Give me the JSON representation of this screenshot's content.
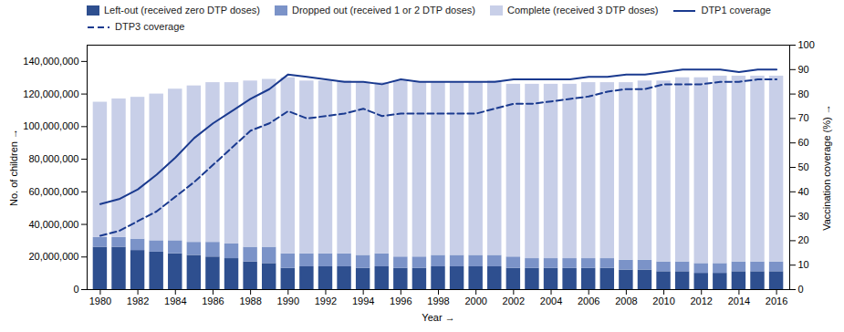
{
  "chart_data": {
    "type": "bar",
    "stacked": true,
    "grid": false,
    "legend": "upper left",
    "xlabel": "Year",
    "ylabel": "No. of children",
    "y2label": "Vaccination coverage (%)",
    "x": [
      1980,
      1981,
      1982,
      1983,
      1984,
      1985,
      1986,
      1987,
      1988,
      1989,
      1990,
      1991,
      1992,
      1993,
      1994,
      1995,
      1996,
      1997,
      1998,
      1999,
      2000,
      2001,
      2002,
      2003,
      2004,
      2005,
      2006,
      2007,
      2008,
      2009,
      2010,
      2011,
      2012,
      2013,
      2014,
      2015,
      2016
    ],
    "xlim": [
      1979.3,
      2016.7
    ],
    "xticks": [
      1980,
      1982,
      1984,
      1986,
      1988,
      1990,
      1992,
      1994,
      1996,
      1998,
      2000,
      2002,
      2004,
      2006,
      2008,
      2010,
      2012,
      2014,
      2016
    ],
    "ylim": [
      0,
      150000000
    ],
    "yticks": [
      0,
      {
        "value": 20000000,
        "label": "20,000,000"
      },
      {
        "value": 40000000,
        "label": "40,000,000"
      },
      {
        "value": 60000000,
        "label": "60,000,000"
      },
      {
        "value": 80000000,
        "label": "80,000,000"
      },
      {
        "value": 100000000,
        "label": "100,000,000"
      },
      {
        "value": 120000000,
        "label": "120,000,000"
      },
      {
        "value": 140000000,
        "label": "140,000,000"
      }
    ],
    "y2lim": [
      0,
      100
    ],
    "y2ticks": [
      0,
      10,
      20,
      30,
      40,
      50,
      60,
      70,
      80,
      90,
      100
    ],
    "series": [
      {
        "name": "Left-out (received zero DTP doses)",
        "type": "bar",
        "color": "#2e4f8f",
        "values": [
          26000000,
          26000000,
          24000000,
          23000000,
          22000000,
          21000000,
          20000000,
          19000000,
          17000000,
          16000000,
          13000000,
          14000000,
          14000000,
          14000000,
          13000000,
          14000000,
          13000000,
          13000000,
          14000000,
          14000000,
          14000000,
          14000000,
          13000000,
          13000000,
          13000000,
          13000000,
          13000000,
          13000000,
          12000000,
          12000000,
          11000000,
          11000000,
          10000000,
          10000000,
          11000000,
          11000000,
          11000000
        ]
      },
      {
        "name": "Dropped out (received 1 or 2 DTP doses)",
        "type": "bar",
        "color": "#7b93c8",
        "values": [
          6000000,
          6000000,
          7000000,
          7000000,
          8000000,
          8000000,
          9000000,
          9000000,
          9000000,
          10000000,
          9000000,
          8000000,
          8000000,
          8000000,
          8000000,
          8000000,
          7000000,
          7000000,
          7000000,
          7000000,
          7000000,
          7000000,
          7000000,
          6000000,
          6000000,
          6000000,
          6000000,
          6000000,
          6000000,
          6000000,
          6000000,
          6000000,
          6000000,
          6000000,
          6000000,
          6000000,
          6000000
        ]
      },
      {
        "name": "Complete (received 3 DTP doses)",
        "type": "bar",
        "color": "#c8cfe8",
        "values": [
          83000000,
          85000000,
          87000000,
          90000000,
          93000000,
          96000000,
          98000000,
          99000000,
          102000000,
          103000000,
          108000000,
          106000000,
          106000000,
          106000000,
          106000000,
          105000000,
          108000000,
          107000000,
          106000000,
          106000000,
          106000000,
          107000000,
          106000000,
          107000000,
          107000000,
          107000000,
          108000000,
          108000000,
          109000000,
          110000000,
          111000000,
          113000000,
          114000000,
          115000000,
          114000000,
          114000000,
          114000000
        ]
      },
      {
        "name": "DTP1 coverage",
        "type": "line",
        "axis": "y2",
        "color": "#1a3a8f",
        "line_style": "solid",
        "values": [
          35,
          37,
          41,
          47,
          54,
          62,
          68,
          73,
          78,
          82,
          88,
          87,
          86,
          85,
          85,
          84,
          86,
          85,
          85,
          85,
          85,
          85,
          86,
          86,
          86,
          86,
          87,
          87,
          88,
          88,
          89,
          90,
          90,
          90,
          89,
          90,
          90
        ]
      },
      {
        "name": "DTP3 coverage",
        "type": "line",
        "axis": "y2",
        "color": "#1a3a8f",
        "line_style": "dashed",
        "values": [
          22,
          24,
          28,
          32,
          38,
          44,
          51,
          58,
          65,
          68,
          73,
          70,
          71,
          72,
          74,
          71,
          72,
          72,
          72,
          72,
          72,
          74,
          76,
          76,
          77,
          78,
          79,
          81,
          82,
          82,
          84,
          84,
          84,
          85,
          85,
          86,
          86
        ]
      }
    ]
  }
}
